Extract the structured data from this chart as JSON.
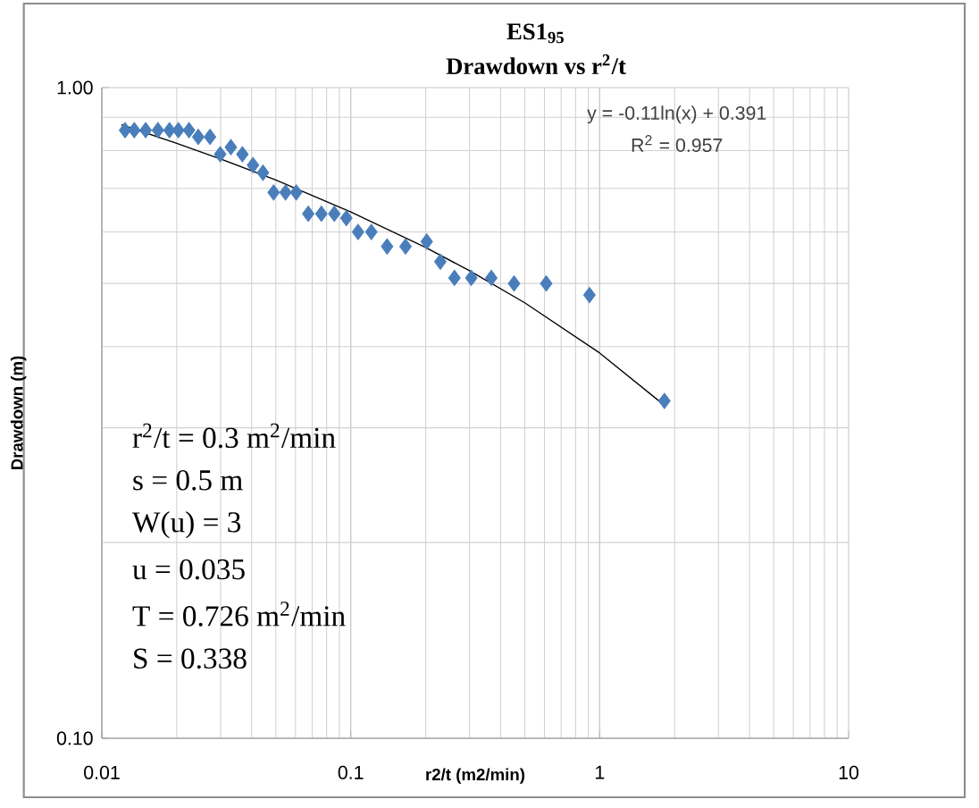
{
  "chart_data": {
    "type": "scatter",
    "title": "ES1$_{95}$",
    "subtitle": "Drawdown vs r$^{2}$/t",
    "xlabel": "r2/t (m2/min)",
    "ylabel": "Drawdown (m)",
    "log": "xy",
    "grid": true,
    "marker": "diamond",
    "xlim": [
      0.01,
      10
    ],
    "ylim": [
      0.1,
      1
    ],
    "xticks": [
      0.01,
      0.1,
      1,
      10
    ],
    "yticks": [
      {
        "value": 0.1,
        "label": "0.10"
      },
      {
        "value": 1,
        "label": "1.00"
      }
    ],
    "series": [
      {
        "color": "#4a7ebb",
        "x": [
          0.0124,
          0.0135,
          0.015,
          0.0168,
          0.0187,
          0.0203,
          0.0224,
          0.0244,
          0.0272,
          0.0299,
          0.033,
          0.0367,
          0.0405,
          0.0444,
          0.049,
          0.0547,
          0.0604,
          0.0675,
          0.0762,
          0.0859,
          0.096,
          0.107,
          0.121,
          0.14,
          0.166,
          0.202,
          0.229,
          0.261,
          0.305,
          0.367,
          0.453,
          0.61,
          0.91,
          1.82
        ],
        "values": [
          0.86,
          0.86,
          0.86,
          0.86,
          0.86,
          0.86,
          0.86,
          0.84,
          0.84,
          0.79,
          0.81,
          0.79,
          0.76,
          0.74,
          0.69,
          0.69,
          0.69,
          0.64,
          0.64,
          0.64,
          0.63,
          0.6,
          0.6,
          0.57,
          0.57,
          0.58,
          0.54,
          0.51,
          0.51,
          0.51,
          0.5,
          0.5,
          0.48,
          0.33
        ]
      },
      {
        "type": "line",
        "color": "#000000",
        "marker": "none",
        "x": [
          0.012,
          0.02,
          0.03,
          0.05,
          0.1,
          0.2,
          0.3,
          0.5,
          1,
          1.8
        ],
        "values": [
          0.877,
          0.821,
          0.777,
          0.721,
          0.644,
          0.568,
          0.523,
          0.467,
          0.391,
          0.326
        ]
      }
    ],
    "annotations": [
      "y = -0.11ln(x) + 0.391",
      "R$^{2}$ = 0.957",
      "r$^{2}$/t = 0.3 m$^{2}$/min",
      "s = 0.5 m",
      "W(u) = 3",
      "u = 0.035",
      "T = 0.726 m$^{2}$/min",
      "S = 0.338"
    ]
  }
}
